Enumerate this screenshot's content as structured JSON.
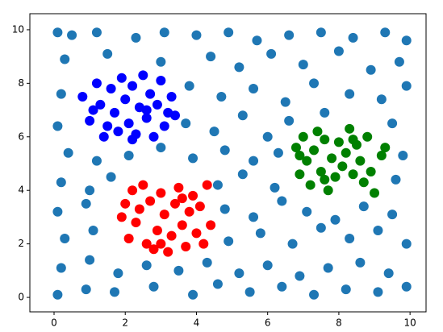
{
  "chart_data": {
    "type": "scatter",
    "xlim": [
      -0.68,
      10.45
    ],
    "ylim": [
      -0.54,
      10.6
    ],
    "xticks": [
      0,
      2,
      4,
      6,
      8,
      10
    ],
    "yticks": [
      0,
      2,
      4,
      6,
      8,
      10
    ],
    "grid": false,
    "series": [
      {
        "color": "#1f77b4",
        "x": [
          0.1,
          0.5,
          1.2,
          2.3,
          3.1,
          4.0,
          4.9,
          5.7,
          6.6,
          7.5,
          8.4,
          9.3,
          9.9,
          0.3,
          1.5,
          3.0,
          4.4,
          5.2,
          6.1,
          7.0,
          8.0,
          8.9,
          9.7,
          0.2,
          3.8,
          4.7,
          5.6,
          6.5,
          7.3,
          8.3,
          9.2,
          9.9,
          0.1,
          3.7,
          4.5,
          5.3,
          6.0,
          6.6,
          7.6,
          9.5,
          0.4,
          1.2,
          2.1,
          3.0,
          3.9,
          4.8,
          5.6,
          6.3,
          9.8,
          0.2,
          1.0,
          1.6,
          4.6,
          5.3,
          6.2,
          9.6,
          0.1,
          0.9,
          4.8,
          5.6,
          6.4,
          7.1,
          7.9,
          8.7,
          9.5,
          0.3,
          1.1,
          4.9,
          5.8,
          6.7,
          7.5,
          8.3,
          9.1,
          9.9,
          0.2,
          1.0,
          1.8,
          2.6,
          3.5,
          4.3,
          5.2,
          6.0,
          6.9,
          7.7,
          8.6,
          9.4,
          0.1,
          0.9,
          1.7,
          2.8,
          3.9,
          4.6,
          5.5,
          6.4,
          7.3,
          8.2,
          9.1,
          9.9
        ],
        "values": [
          9.9,
          9.8,
          9.9,
          9.7,
          9.9,
          9.8,
          9.9,
          9.6,
          9.8,
          9.9,
          9.7,
          9.9,
          9.6,
          8.9,
          9.1,
          8.8,
          9.0,
          8.6,
          9.1,
          8.7,
          9.2,
          8.5,
          8.8,
          7.6,
          7.9,
          7.5,
          7.8,
          7.3,
          8.0,
          7.6,
          7.4,
          7.9,
          6.4,
          6.5,
          6.2,
          6.8,
          6.0,
          6.6,
          6.9,
          6.5,
          5.4,
          5.1,
          5.3,
          5.6,
          5.2,
          5.5,
          5.1,
          5.4,
          5.3,
          4.3,
          4.0,
          4.5,
          4.2,
          4.6,
          4.1,
          4.4,
          3.2,
          3.5,
          3.3,
          3.0,
          3.6,
          3.2,
          2.9,
          3.4,
          3.1,
          2.2,
          2.5,
          2.1,
          2.4,
          2.0,
          2.6,
          2.2,
          2.5,
          2.0,
          1.1,
          1.4,
          0.9,
          1.2,
          1.0,
          1.3,
          0.9,
          1.2,
          0.8,
          1.1,
          1.3,
          0.9,
          0.1,
          0.3,
          0.2,
          0.4,
          0.1,
          0.5,
          0.2,
          0.4,
          0.1,
          0.3,
          0.2,
          0.4
        ]
      },
      {
        "color": "blue",
        "x": [
          0.8,
          1.0,
          1.2,
          1.3,
          1.5,
          1.6,
          1.7,
          1.9,
          2.0,
          2.1,
          2.2,
          2.3,
          2.4,
          2.5,
          2.6,
          2.7,
          2.8,
          2.9,
          3.0,
          3.1,
          3.2,
          3.3,
          3.4,
          1.4,
          2.2,
          1.8,
          2.6,
          1.1
        ],
        "values": [
          7.5,
          6.6,
          8.0,
          7.2,
          6.4,
          7.8,
          6.9,
          8.2,
          7.4,
          6.5,
          7.9,
          6.1,
          7.1,
          8.3,
          6.7,
          7.6,
          6.0,
          7.2,
          8.1,
          6.4,
          6.9,
          7.5,
          6.8,
          6.0,
          5.9,
          6.2,
          7.0,
          7.0
        ]
      },
      {
        "color": "red",
        "x": [
          2.0,
          2.1,
          2.2,
          2.3,
          2.4,
          2.5,
          2.6,
          2.7,
          2.8,
          2.9,
          3.0,
          3.1,
          3.2,
          3.3,
          3.4,
          3.5,
          3.6,
          3.7,
          3.8,
          3.9,
          4.0,
          4.1,
          4.2,
          4.4,
          1.9,
          3.0,
          3.6,
          4.3
        ],
        "values": [
          3.5,
          2.2,
          4.0,
          2.8,
          3.3,
          4.2,
          2.0,
          3.6,
          1.8,
          2.5,
          3.9,
          3.1,
          1.7,
          2.3,
          3.5,
          4.1,
          2.7,
          1.9,
          3.2,
          3.8,
          2.4,
          3.4,
          2.0,
          2.7,
          3.0,
          2.0,
          3.7,
          4.2
        ]
      },
      {
        "color": "green",
        "x": [
          6.8,
          6.9,
          7.0,
          7.1,
          7.2,
          7.3,
          7.4,
          7.5,
          7.6,
          7.7,
          7.8,
          7.9,
          8.0,
          8.1,
          8.2,
          8.3,
          8.4,
          8.5,
          8.6,
          8.7,
          8.8,
          8.9,
          9.0,
          9.2,
          9.3,
          6.9,
          7.6,
          8.4
        ],
        "values": [
          5.6,
          4.6,
          6.0,
          5.1,
          4.2,
          5.5,
          6.2,
          4.7,
          5.9,
          4.0,
          5.2,
          4.5,
          5.8,
          4.9,
          5.4,
          6.3,
          4.6,
          5.7,
          5.1,
          4.3,
          6.0,
          4.7,
          3.9,
          5.3,
          5.6,
          5.3,
          4.4,
          5.9
        ]
      }
    ]
  }
}
